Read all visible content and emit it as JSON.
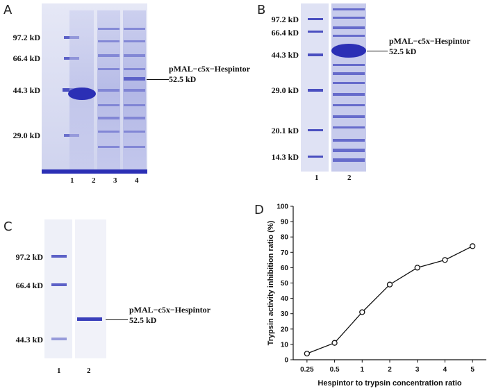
{
  "panels": {
    "A": {
      "letter": "A",
      "markers": [
        "97.2 kD",
        "66.4 kD",
        "44.3 kD",
        "29.0 kD"
      ],
      "lanes": [
        "1",
        "2",
        "3",
        "4"
      ],
      "callout": [
        "pMAL−c5x−Hespintor",
        "52.5 kD"
      ],
      "gel_color": "#d5d8f0",
      "band_color": "#2b2fb5"
    },
    "B": {
      "letter": "B",
      "markers": [
        "97.2 kD",
        "66.4 kD",
        "44.3 kD",
        "29.0 kD",
        "20.1 kD",
        "14.3 kD"
      ],
      "lanes": [
        "1",
        "2"
      ],
      "callout": [
        "pMAL−c5x−Hespintor",
        "52.5 kD"
      ]
    },
    "C": {
      "letter": "C",
      "markers": [
        "97.2 kD",
        "66.4 kD",
        "44.3 kD"
      ],
      "lanes": [
        "1",
        "2"
      ],
      "callout": [
        "pMAL−c5x−Hespintor",
        "52.5 kD"
      ]
    },
    "D": {
      "letter": "D"
    }
  },
  "chart_data": {
    "type": "line",
    "categories": [
      "0.25",
      "0.5",
      "1",
      "2",
      "3",
      "4",
      "5"
    ],
    "values": [
      4,
      11,
      31,
      49,
      60,
      65,
      74
    ],
    "xlabel": "Hespintor to trypsin concentration ratio",
    "ylabel": "Trypsin activity inhibition ratio (%)",
    "ylim": [
      0,
      100
    ],
    "yticks": [
      "0",
      "10",
      "20",
      "30",
      "40",
      "50",
      "60",
      "70",
      "80",
      "90",
      "100"
    ],
    "marker": "open-circle",
    "grid": false
  }
}
